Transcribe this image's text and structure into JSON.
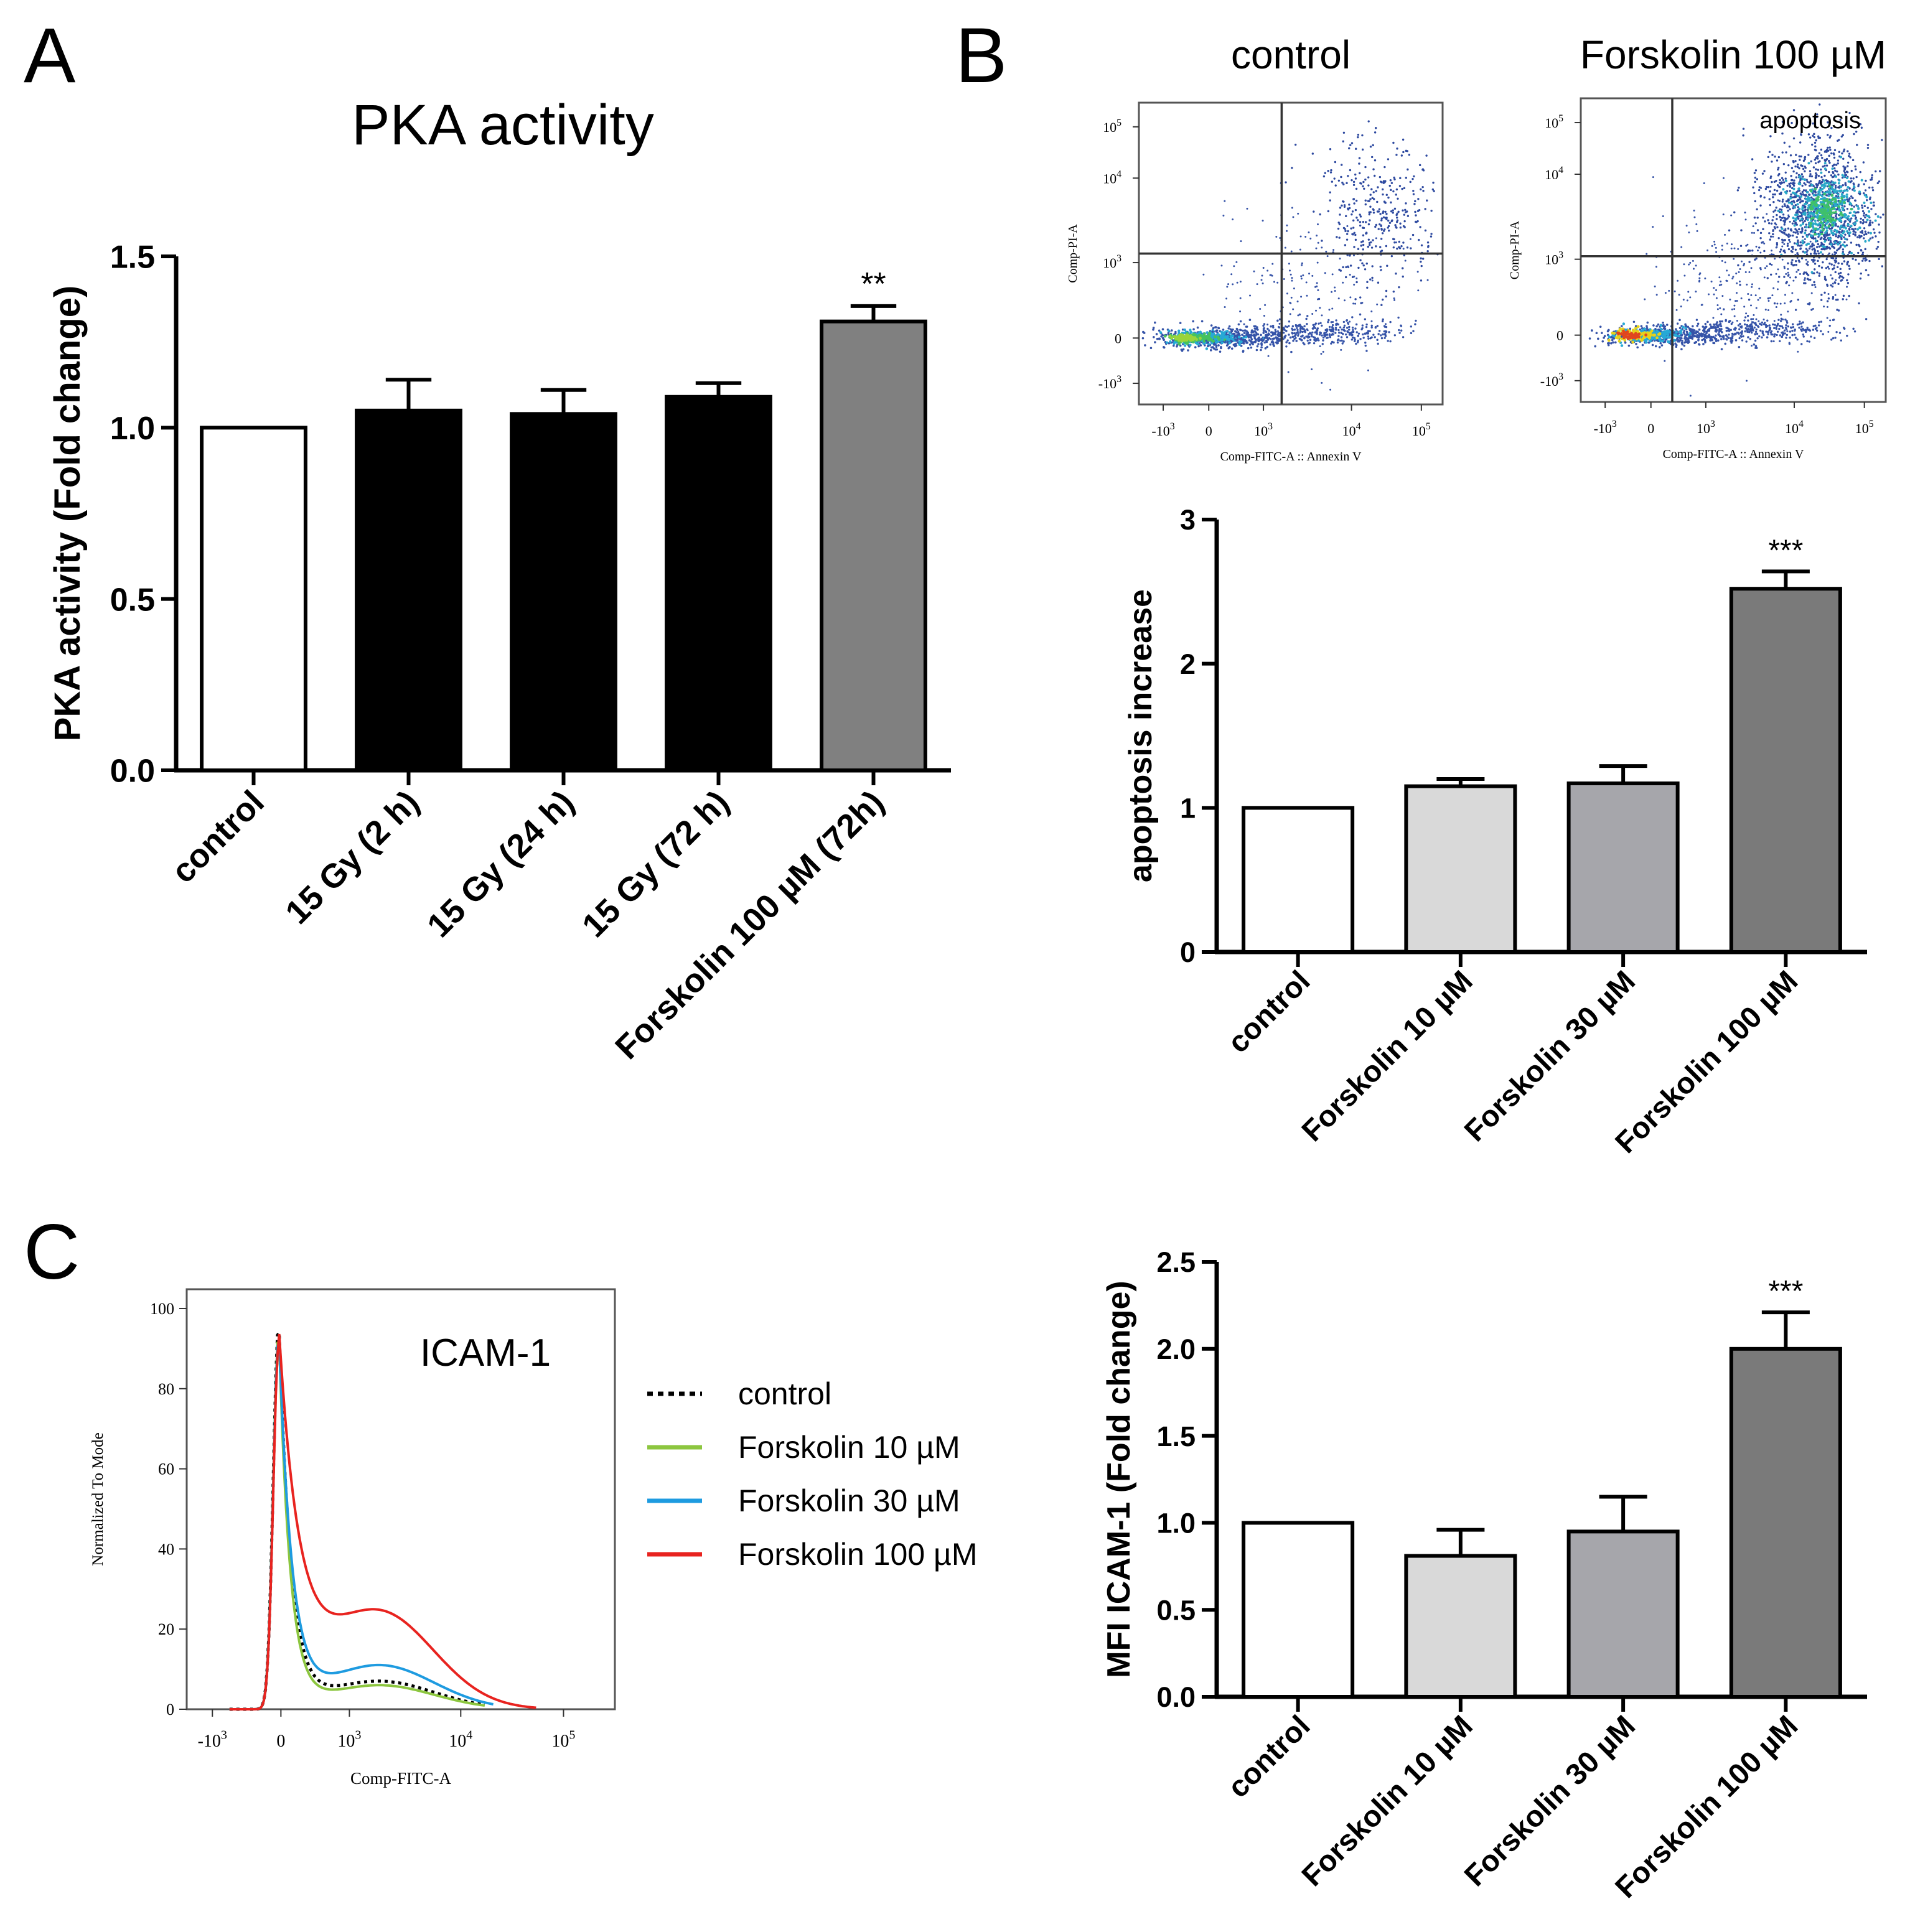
{
  "panel_labels": {
    "a": "A",
    "b": "B",
    "c": "C"
  },
  "chart_data": [
    {
      "id": "pka",
      "type": "bar",
      "title": "PKA activity",
      "xlabel": "",
      "ylabel": "PKA activity (Fold change)",
      "ylim": [
        0,
        1.5
      ],
      "yticks": [
        "0.0",
        "0.5",
        "1.0",
        "1.5"
      ],
      "ytick_values": [
        0,
        0.5,
        1.0,
        1.5
      ],
      "categories": [
        "control",
        "15 Gy (2 h)",
        "15 Gy (24 h)",
        "15 Gy (72 h)",
        "Forskolin 100 µM (72h)"
      ],
      "values": [
        1.0,
        1.05,
        1.04,
        1.09,
        1.31
      ],
      "errors": [
        0,
        0.09,
        0.07,
        0.04,
        0.045
      ],
      "colors": [
        "#ffffff",
        "#000000",
        "#000000",
        "#000000",
        "#808080"
      ],
      "annotations": [
        "",
        "",
        "",
        "",
        "**"
      ]
    },
    {
      "id": "apoptosis",
      "type": "bar",
      "title": "",
      "xlabel": "",
      "ylabel": "apoptosis increase",
      "ylim": [
        0,
        3
      ],
      "yticks": [
        "0",
        "1",
        "2",
        "3"
      ],
      "ytick_values": [
        0,
        1,
        2,
        3
      ],
      "categories": [
        "control",
        "Forskolin 10 µM",
        "Forskolin 30 µM",
        "Forskolin 100 µM"
      ],
      "values": [
        1.0,
        1.15,
        1.17,
        2.52
      ],
      "errors": [
        0,
        0.05,
        0.12,
        0.12
      ],
      "colors": [
        "#ffffff",
        "#d9d9d9",
        "#a6a6ab",
        "#7a7a7a"
      ],
      "annotations": [
        "",
        "",
        "",
        "***"
      ]
    },
    {
      "id": "icam",
      "type": "bar",
      "title": "",
      "xlabel": "",
      "ylabel": "MFI ICAM-1 (Fold change)",
      "ylim": [
        0,
        2.5
      ],
      "yticks": [
        "0.0",
        "0.5",
        "1.0",
        "1.5",
        "2.0",
        "2.5"
      ],
      "ytick_values": [
        0,
        0.5,
        1.0,
        1.5,
        2.0,
        2.5
      ],
      "categories": [
        "control",
        "Forskolin 10 µM",
        "Forskolin 30 µM",
        "Forskolin 100 µM"
      ],
      "values": [
        1.0,
        0.81,
        0.95,
        2.0
      ],
      "errors": [
        0,
        0.15,
        0.2,
        0.21
      ],
      "colors": [
        "#ffffff",
        "#d9d9d9",
        "#a6a6ab",
        "#7a7a7a"
      ],
      "annotations": [
        "",
        "",
        "",
        "***"
      ]
    },
    {
      "id": "facs_control",
      "type": "scatter",
      "title": "control",
      "xlabel": "Comp-FITC-A :: Annexin V",
      "ylabel": "Comp-PI-A",
      "x_ticks": [
        "-10",
        "0",
        "10",
        "10",
        "10"
      ],
      "x_tick_exps": [
        "3",
        "",
        "3",
        "4",
        "5"
      ],
      "y_ticks": [
        "-10",
        "0",
        "10",
        "10",
        "10"
      ],
      "y_tick_exps": [
        "3",
        "",
        "3",
        "4",
        "5"
      ],
      "quadrant_label": ""
    },
    {
      "id": "facs_forskolin",
      "type": "scatter",
      "title": "Forskolin 100 µM",
      "xlabel": "Comp-FITC-A :: Annexin V",
      "ylabel": "Comp-PI-A",
      "x_ticks": [
        "-10",
        "0",
        "10",
        "10",
        "10"
      ],
      "x_tick_exps": [
        "3",
        "",
        "3",
        "4",
        "5"
      ],
      "y_ticks": [
        "-10",
        "0",
        "10",
        "10",
        "10"
      ],
      "y_tick_exps": [
        "3",
        "",
        "3",
        "4",
        "5"
      ],
      "quadrant_label": "apoptosis"
    },
    {
      "id": "histogram",
      "type": "line",
      "title": "ICAM-1",
      "xlabel": "Comp-FITC-A",
      "ylabel": "Normalized To Mode",
      "ylim": [
        0,
        100
      ],
      "yticks": [
        "0",
        "20",
        "40",
        "60",
        "80",
        "100"
      ],
      "ytick_values": [
        0,
        20,
        40,
        60,
        80,
        100
      ],
      "x_ticks": [
        "-10",
        "0",
        "10",
        "10",
        "10"
      ],
      "x_tick_exps": [
        "3",
        "",
        "3",
        "4",
        "5"
      ],
      "series": [
        {
          "name": "control",
          "color": "#000000",
          "dash": "dotted"
        },
        {
          "name": "Forskolin 10 µM",
          "color": "#8cc63f",
          "dash": "solid"
        },
        {
          "name": "Forskolin 30 µM",
          "color": "#1e9be0",
          "dash": "solid"
        },
        {
          "name": "Forskolin 100 µM",
          "color": "#e8231f",
          "dash": "solid"
        }
      ]
    }
  ]
}
